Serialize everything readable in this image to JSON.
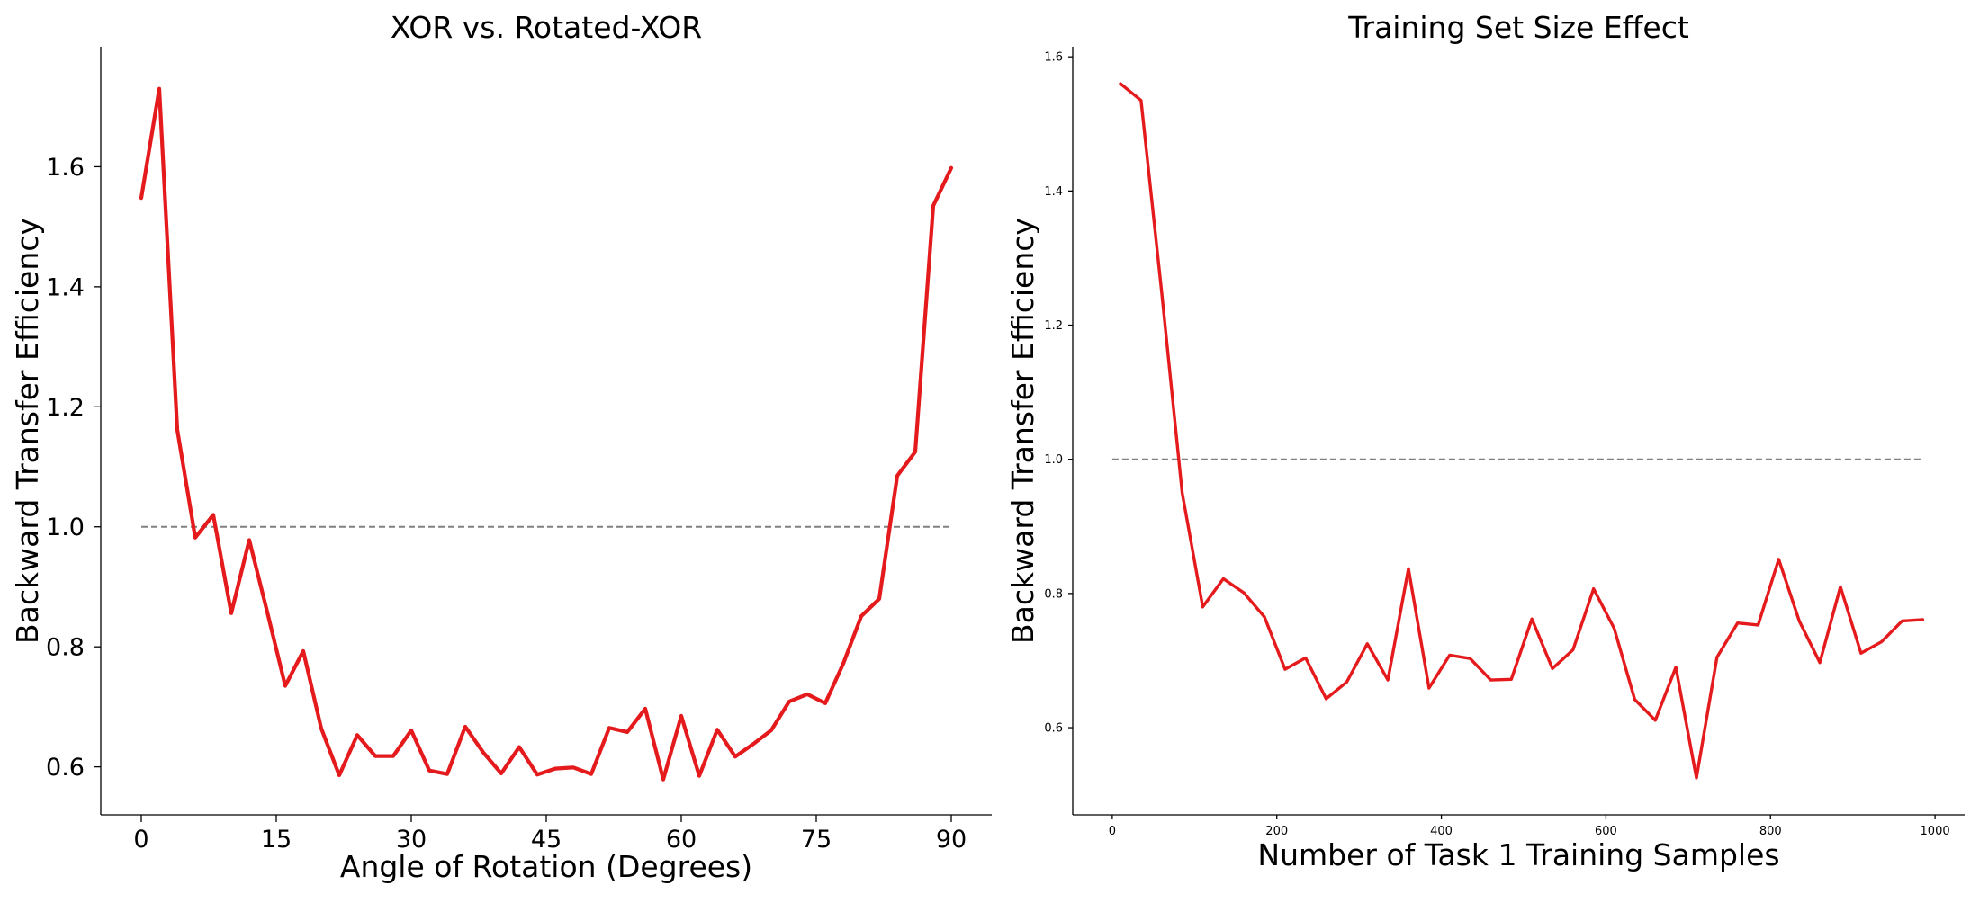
{
  "chart_data": [
    {
      "type": "line",
      "title": "XOR vs. Rotated-XOR",
      "xlabel": "Angle of Rotation (Degrees)",
      "ylabel": "Backward Transfer Efficiency",
      "xlim": [
        -4.5,
        94.5
      ],
      "ylim": [
        0.52,
        1.8
      ],
      "xticks": [
        0,
        15,
        30,
        45,
        60,
        75,
        90
      ],
      "yticks": [
        0.6,
        0.8,
        1.0,
        1.2,
        1.4,
        1.6
      ],
      "ytick_labels": [
        "0.6",
        "0.8",
        "1.0",
        "1.2",
        "1.4",
        "1.6"
      ],
      "grid": false,
      "reference_line": {
        "y": 1.0,
        "x": [
          0,
          90
        ],
        "style": "dashed",
        "color": "#808080"
      },
      "series": [
        {
          "color": "#e41a1c",
          "x": [
            0,
            2,
            4,
            6,
            8,
            10,
            12,
            14,
            16,
            18,
            20,
            22,
            24,
            26,
            28,
            30,
            32,
            34,
            36,
            38,
            40,
            42,
            44,
            46,
            48,
            50,
            52,
            54,
            56,
            58,
            60,
            62,
            64,
            66,
            68,
            70,
            72,
            74,
            76,
            78,
            80,
            82,
            84,
            86,
            88,
            90
          ],
          "y": [
            1.548,
            1.73,
            1.162,
            0.982,
            1.02,
            0.856,
            0.978,
            0.858,
            0.735,
            0.793,
            0.664,
            0.586,
            0.653,
            0.618,
            0.618,
            0.661,
            0.594,
            0.588,
            0.667,
            0.624,
            0.589,
            0.633,
            0.587,
            0.597,
            0.599,
            0.588,
            0.665,
            0.658,
            0.697,
            0.579,
            0.685,
            0.585,
            0.662,
            0.617,
            0.638,
            0.661,
            0.709,
            0.721,
            0.706,
            0.772,
            0.851,
            0.88,
            1.085,
            1.125,
            1.535,
            1.598
          ]
        }
      ]
    },
    {
      "type": "line",
      "title": "Training Set Size Effect",
      "xlabel": "Number of Task 1 Training Samples",
      "ylabel": "Backward Transfer Efficiency",
      "xlim": [
        -48,
        1036
      ],
      "ylim": [
        0.47,
        1.615
      ],
      "xticks": [
        0,
        200,
        400,
        600,
        800,
        1000
      ],
      "yticks": [
        0.6,
        0.8,
        1.0,
        1.2,
        1.4,
        1.6
      ],
      "ytick_labels": [
        "0.6",
        "0.8",
        "1.0",
        "1.2",
        "1.4",
        "1.6"
      ],
      "grid": false,
      "reference_line": {
        "y": 1.0,
        "x": [
          0,
          985
        ],
        "style": "dashed",
        "color": "#808080"
      },
      "series": [
        {
          "color": "#e41a1c",
          "x": [
            10,
            35,
            60,
            85,
            110,
            135,
            160,
            185,
            210,
            235,
            260,
            285,
            310,
            335,
            360,
            385,
            410,
            435,
            460,
            485,
            510,
            535,
            560,
            585,
            610,
            635,
            660,
            685,
            710,
            735,
            760,
            785,
            810,
            835,
            860,
            885,
            910,
            935,
            960,
            985
          ],
          "y": [
            1.56,
            1.535,
            1.25,
            0.95,
            0.78,
            0.822,
            0.801,
            0.765,
            0.687,
            0.704,
            0.643,
            0.668,
            0.725,
            0.671,
            0.837,
            0.659,
            0.708,
            0.703,
            0.671,
            0.672,
            0.762,
            0.688,
            0.716,
            0.807,
            0.748,
            0.642,
            0.611,
            0.69,
            0.525,
            0.705,
            0.756,
            0.753,
            0.851,
            0.759,
            0.697,
            0.81,
            0.711,
            0.728,
            0.759,
            0.761
          ]
        }
      ]
    }
  ]
}
